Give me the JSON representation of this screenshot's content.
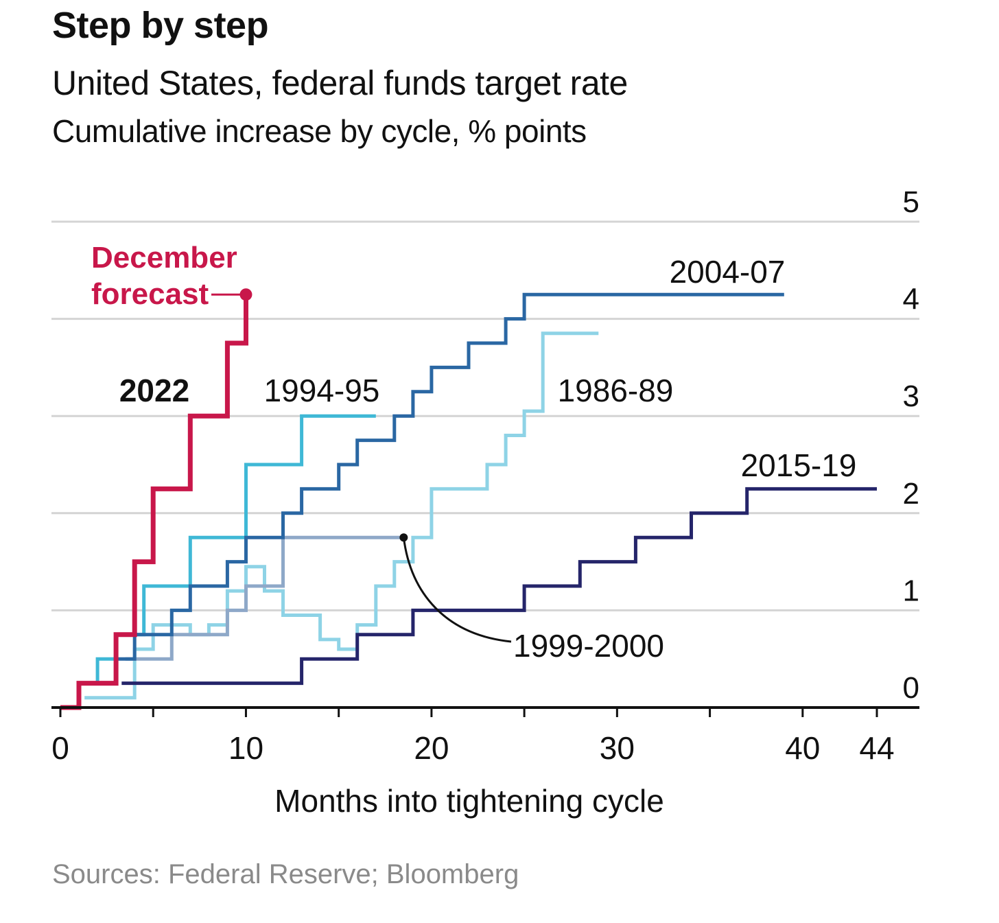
{
  "header": {
    "title": "Step by step",
    "subtitle": "United States, federal funds target rate",
    "unit": "Cumulative increase by cycle, % points"
  },
  "footer": {
    "source": "Sources: Federal Reserve; Bloomberg"
  },
  "chart_data": {
    "type": "line",
    "step": true,
    "title": "Step by step",
    "subtitle": "United States, federal funds target rate",
    "ylabel": "Cumulative increase by cycle, % points",
    "xlabel": "Months into tightening cycle",
    "xlim": [
      0,
      44
    ],
    "ylim": [
      0,
      5
    ],
    "xticks": [
      0,
      10,
      20,
      30,
      40,
      44
    ],
    "yticks": [
      0,
      1,
      2,
      3,
      4,
      5
    ],
    "grid": true,
    "y_axis_side": "right",
    "series": [
      {
        "name": "1986-89",
        "color": "#8ed3e6",
        "width": 5,
        "points": [
          [
            1.3,
            0.1
          ],
          [
            4,
            0.1
          ],
          [
            4,
            0.6
          ],
          [
            5,
            0.6
          ],
          [
            5,
            0.85
          ],
          [
            7,
            0.85
          ],
          [
            7,
            0.75
          ],
          [
            8,
            0.75
          ],
          [
            8,
            0.85
          ],
          [
            9,
            0.85
          ],
          [
            9,
            1.2
          ],
          [
            10,
            1.2
          ],
          [
            10,
            1.45
          ],
          [
            11,
            1.45
          ],
          [
            11,
            1.2
          ],
          [
            12,
            1.2
          ],
          [
            12,
            0.95
          ],
          [
            14,
            0.95
          ],
          [
            14,
            0.7
          ],
          [
            15,
            0.7
          ],
          [
            15,
            0.6
          ],
          [
            16,
            0.6
          ],
          [
            16,
            0.85
          ],
          [
            17,
            0.85
          ],
          [
            17,
            1.25
          ],
          [
            18,
            1.25
          ],
          [
            18,
            1.5
          ],
          [
            19,
            1.5
          ],
          [
            19,
            1.75
          ],
          [
            20,
            1.75
          ],
          [
            20,
            2.25
          ],
          [
            23,
            2.25
          ],
          [
            23,
            2.5
          ],
          [
            24,
            2.5
          ],
          [
            24,
            2.8
          ],
          [
            25,
            2.8
          ],
          [
            25,
            3.05
          ],
          [
            26,
            3.05
          ],
          [
            26,
            3.85
          ],
          [
            29,
            3.85
          ]
        ]
      },
      {
        "name": "1994-95",
        "color": "#3fb8d6",
        "width": 5,
        "points": [
          [
            2,
            0.25
          ],
          [
            2,
            0.5
          ],
          [
            3,
            0.5
          ],
          [
            3,
            0.75
          ],
          [
            4.5,
            0.75
          ],
          [
            4.5,
            1.25
          ],
          [
            7,
            1.25
          ],
          [
            7,
            1.75
          ],
          [
            10,
            1.75
          ],
          [
            10,
            2.5
          ],
          [
            13,
            2.5
          ],
          [
            13,
            3
          ],
          [
            17,
            3
          ]
        ]
      },
      {
        "name": "1999-2000",
        "color": "#8ea8c8",
        "width": 5,
        "points": [
          [
            3.5,
            0.5
          ],
          [
            4,
            0.5
          ],
          [
            4,
            0.5
          ],
          [
            6,
            0.5
          ],
          [
            6,
            0.75
          ],
          [
            9,
            0.75
          ],
          [
            9,
            1.0
          ],
          [
            10,
            1.0
          ],
          [
            10,
            1.25
          ],
          [
            12,
            1.25
          ],
          [
            12,
            1.75
          ],
          [
            18.5,
            1.75
          ]
        ]
      },
      {
        "name": "2004-07",
        "color": "#2a67a3",
        "width": 5,
        "points": [
          [
            3,
            0.5
          ],
          [
            4,
            0.5
          ],
          [
            4,
            0.75
          ],
          [
            6,
            0.75
          ],
          [
            6,
            1.0
          ],
          [
            7,
            1.0
          ],
          [
            7,
            1.25
          ],
          [
            9,
            1.25
          ],
          [
            9,
            1.5
          ],
          [
            10,
            1.5
          ],
          [
            10,
            1.75
          ],
          [
            12,
            1.75
          ],
          [
            12,
            2.0
          ],
          [
            13,
            2.0
          ],
          [
            13,
            2.25
          ],
          [
            15,
            2.25
          ],
          [
            15,
            2.5
          ],
          [
            16,
            2.5
          ],
          [
            16,
            2.75
          ],
          [
            18,
            2.75
          ],
          [
            18,
            3.0
          ],
          [
            19,
            3.0
          ],
          [
            19,
            3.25
          ],
          [
            20,
            3.25
          ],
          [
            20,
            3.5
          ],
          [
            22,
            3.5
          ],
          [
            22,
            3.75
          ],
          [
            24,
            3.75
          ],
          [
            24,
            4.0
          ],
          [
            25,
            4.0
          ],
          [
            25,
            4.25
          ],
          [
            39,
            4.25
          ]
        ]
      },
      {
        "name": "2015-19",
        "color": "#25256a",
        "width": 5,
        "points": [
          [
            3.3,
            0.25
          ],
          [
            13,
            0.25
          ],
          [
            13,
            0.5
          ],
          [
            16,
            0.5
          ],
          [
            16,
            0.75
          ],
          [
            19,
            0.75
          ],
          [
            19,
            1.0
          ],
          [
            25,
            1.0
          ],
          [
            25,
            1.25
          ],
          [
            28,
            1.25
          ],
          [
            28,
            1.5
          ],
          [
            31,
            1.5
          ],
          [
            31,
            1.75
          ],
          [
            34,
            1.75
          ],
          [
            34,
            2.0
          ],
          [
            37,
            2.0
          ],
          [
            37,
            2.25
          ],
          [
            44,
            2.25
          ]
        ]
      },
      {
        "name": "2022",
        "color": "#c8174a",
        "width": 7,
        "points": [
          [
            0,
            0
          ],
          [
            1,
            0
          ],
          [
            1,
            0.25
          ],
          [
            3,
            0.25
          ],
          [
            3,
            0.75
          ],
          [
            4,
            0.75
          ],
          [
            4,
            1.5
          ],
          [
            5,
            1.5
          ],
          [
            5,
            2.25
          ],
          [
            7,
            2.25
          ],
          [
            7,
            3.0
          ],
          [
            9,
            3.0
          ],
          [
            9,
            3.75
          ],
          [
            10,
            3.75
          ],
          [
            10,
            4.25
          ]
        ]
      }
    ],
    "annotations": {
      "forecast": {
        "line1": "December",
        "line2": "forecast",
        "x": 10,
        "y": 4.25,
        "color": "#c8174a"
      },
      "callout_1999": {
        "x": 18.5,
        "y": 1.75,
        "label": "1999-2000"
      }
    },
    "series_labels": [
      "2022",
      "1994-95",
      "1986-89",
      "2004-07",
      "2015-19",
      "1999-2000"
    ]
  }
}
